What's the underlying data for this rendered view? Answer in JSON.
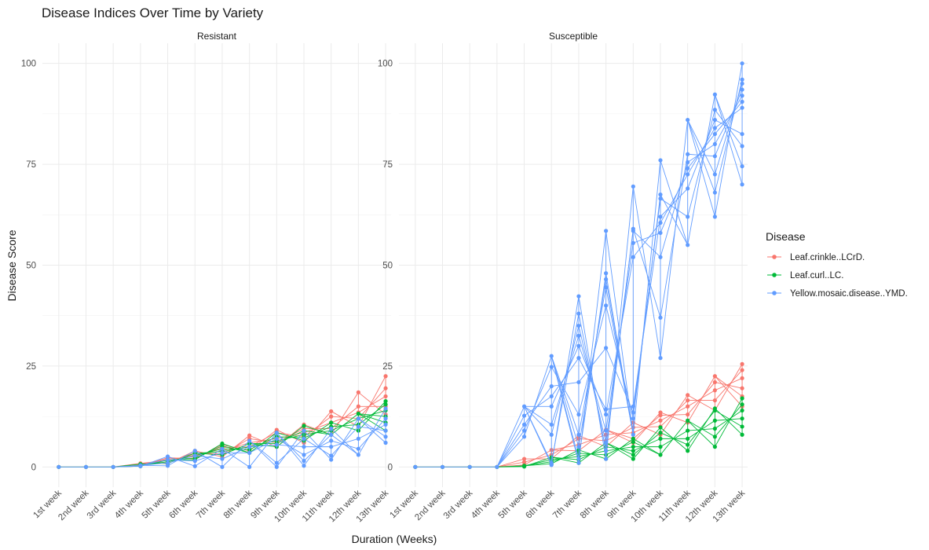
{
  "chart_data": {
    "type": "line",
    "title": "Disease Indices Over Time by Variety",
    "xlabel": "Duration (Weeks)",
    "ylabel": "Disease Score",
    "ylim": [
      -5,
      105
    ],
    "yticks": [
      0,
      25,
      50,
      75,
      100
    ],
    "grid": true,
    "categories": [
      "1st week",
      "2nd week",
      "3rd week",
      "4th week",
      "5th week",
      "6th week",
      "7th week",
      "8th week",
      "9th week",
      "10th week",
      "11th week",
      "12th week",
      "13th week"
    ],
    "legend": {
      "title": "Disease",
      "placement": "right",
      "entries": [
        "Leaf.crinkle..LCrD.",
        "Leaf.curl..LC.",
        "Yellow.mosaic.disease..YMD."
      ]
    },
    "colors": {
      "Leaf.crinkle..LCrD.": "#F8766D",
      "Leaf.curl..LC.": "#00BA38",
      "Yellow.mosaic.disease..YMD.": "#619CFF"
    },
    "facets": [
      {
        "name": "Resistant",
        "series": [
          {
            "name": "Leaf.crinkle..LCrD.",
            "values": [
              [
                0
              ],
              [
                0
              ],
              [
                0
              ],
              [
                0.2,
                0.5,
                0.9
              ],
              [
                0.8,
                1.2,
                1.6,
                2.0,
                2.3
              ],
              [
                2.0,
                2.5,
                3.0,
                3.5,
                4.0
              ],
              [
                2.5,
                3.2,
                4.0,
                4.8,
                5.5
              ],
              [
                4.0,
                5.0,
                6.0,
                7.0,
                7.8
              ],
              [
                5.0,
                6.0,
                7.0,
                8.5,
                9.2
              ],
              [
                6.0,
                7.5,
                8.5,
                9.5,
                10.5
              ],
              [
                8.0,
                9.5,
                11.0,
                12.5,
                13.8
              ],
              [
                10.0,
                12.0,
                13.5,
                15.0,
                18.5
              ],
              [
                13.0,
                15.0,
                17.5,
                19.5,
                22.5
              ]
            ]
          },
          {
            "name": "Leaf.curl..LC.",
            "values": [
              [
                0
              ],
              [
                0
              ],
              [
                0
              ],
              [
                0.2,
                0.4,
                0.7
              ],
              [
                0.9,
                1.3,
                1.7
              ],
              [
                1.8,
                2.2,
                2.8,
                3.4
              ],
              [
                3.0,
                3.8,
                4.5,
                5.2,
                5.8
              ],
              [
                3.5,
                4.3,
                5.0,
                5.8
              ],
              [
                5.0,
                5.8,
                6.5,
                7.5,
                8.5
              ],
              [
                6.5,
                7.2,
                8.0,
                9.0,
                10.2
              ],
              [
                8.0,
                9.0,
                10.0,
                11.0
              ],
              [
                9.0,
                10.5,
                12.0,
                13.2
              ],
              [
                9.0,
                11.0,
                12.5,
                14.0,
                15.5,
                16.3
              ]
            ]
          },
          {
            "name": "Yellow.mosaic.disease..YMD.",
            "values": [
              [
                0
              ],
              [
                0
              ],
              [
                0
              ],
              [
                0.2,
                0.4
              ],
              [
                0.3,
                1.0,
                1.8,
                2.6
              ],
              [
                0.2,
                1.5,
                2.8,
                4.0
              ],
              [
                0,
                2.0,
                3.5,
                4.5
              ],
              [
                0,
                3.5,
                5.0,
                6.5
              ],
              [
                0,
                1.0,
                5.5,
                7.0,
                8.5
              ],
              [
                0.3,
                1.5,
                3.0,
                5.0,
                7.0,
                9.0
              ],
              [
                1.8,
                2.8,
                5.0,
                6.5,
                8.0,
                9.5
              ],
              [
                3.0,
                4.5,
                7.0,
                10.0,
                12.0
              ],
              [
                6.0,
                7.5,
                9.0,
                10.5,
                12.0,
                14.5
              ]
            ]
          }
        ]
      },
      {
        "name": "Susceptible",
        "series": [
          {
            "name": "Leaf.crinkle..LCrD.",
            "values": [
              [
                0
              ],
              [
                0
              ],
              [
                0
              ],
              [
                0
              ],
              [
                0.5,
                1.2,
                2.0
              ],
              [
                2.0,
                3.0,
                4.2
              ],
              [
                4.0,
                5.5,
                7.0,
                7.8
              ],
              [
                5.0,
                6.5,
                8.0,
                9.2
              ],
              [
                6.0,
                7.0,
                8.5,
                9.8,
                11.0
              ],
              [
                8.0,
                10.0,
                11.5,
                12.8,
                13.5
              ],
              [
                11.0,
                13.0,
                15.0,
                16.5,
                17.8
              ],
              [
                14.0,
                16.5,
                19.0,
                21.0,
                22.5
              ],
              [
                15.0,
                17.5,
                19.5,
                22.0,
                24.0,
                25.5
              ]
            ]
          },
          {
            "name": "Leaf.curl..LC.",
            "values": [
              [
                0
              ],
              [
                0
              ],
              [
                0
              ],
              [
                0
              ],
              [
                0.1,
                0.3
              ],
              [
                0.8,
                1.3,
                1.8,
                2.4
              ],
              [
                1.0,
                1.8,
                2.6,
                3.4,
                4.2
              ],
              [
                2.0,
                3.0,
                4.0,
                5.0,
                6.0
              ],
              [
                2.0,
                3.0,
                4.0,
                5.0,
                6.2,
                7.0
              ],
              [
                3.0,
                5.0,
                7.0,
                8.5,
                9.8
              ],
              [
                4.0,
                5.5,
                7.0,
                9.0,
                11.5
              ],
              [
                5.0,
                7.5,
                9.5,
                11.5,
                14.0,
                14.5
              ],
              [
                8.0,
                10.0,
                12.0,
                14.0,
                15.5,
                17.0
              ]
            ]
          },
          {
            "name": "Yellow.mosaic.disease..YMD.",
            "values": [
              [
                0
              ],
              [
                0
              ],
              [
                0
              ],
              [
                0
              ],
              [
                7.5,
                9.0,
                10.5,
                12.7,
                15.0
              ],
              [
                0.5,
                1.0,
                8.0,
                10.5,
                15.0,
                17.5,
                20.0,
                24.8,
                27.5
              ],
              [
                1.0,
                2.0,
                5.0,
                8.0,
                13.0,
                21.0,
                27.0,
                30.0,
                32.5,
                35.0,
                38.0,
                42.3
              ],
              [
                2.0,
                4.0,
                6.0,
                9.0,
                13.0,
                14.3,
                29.5,
                40.0,
                44.5,
                46.5,
                48.0,
                58.5
              ],
              [
                8.0,
                12.0,
                13.5,
                15.0,
                52.0,
                55.5,
                58.5,
                59.0,
                69.5
              ],
              [
                27.0,
                37.0,
                52.0,
                58.0,
                60.5,
                62.0,
                66.5,
                67.5,
                76.0
              ],
              [
                55.0,
                62.0,
                69.0,
                72.5,
                74.0,
                75.5,
                77.5,
                86.0
              ],
              [
                62.0,
                68.0,
                72.5,
                77.0,
                80.0,
                82.5,
                84.0,
                86.0,
                88.5,
                92.3
              ],
              [
                70.0,
                74.5,
                79.5,
                82.5,
                89.0,
                90.5,
                92.0,
                93.5,
                95.0,
                96.0,
                100.0
              ]
            ]
          }
        ]
      }
    ]
  }
}
